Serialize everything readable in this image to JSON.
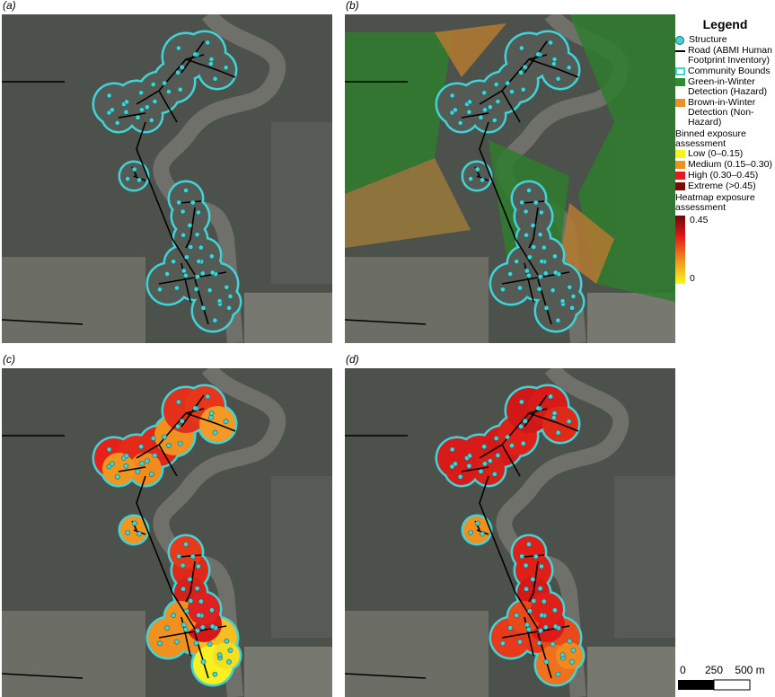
{
  "panel_labels": [
    "(a)",
    "(b)",
    "(c)",
    "(d)"
  ],
  "legend": {
    "title": "Legend",
    "items": [
      {
        "label": "Structure",
        "color": "#3fd4d8"
      },
      {
        "label": "Road (ABMI Human Footprint Inventory)",
        "color": "#000000"
      },
      {
        "label": "Community Bounds",
        "color": "#3fd4d8"
      },
      {
        "label": "Green-in-Winter Detection (Hazard)",
        "color": "#2e8b2e"
      },
      {
        "label": "Brown-in-Winter Detection (Non-Hazard)",
        "color": "#e8902a"
      }
    ],
    "binned_title": "Binned exposure assessment",
    "bins": [
      {
        "label": "Low (0–0.15)",
        "color": "#f5f51e"
      },
      {
        "label": "Medium (0.15–0.30)",
        "color": "#f0901e"
      },
      {
        "label": "High (0.30–0.45)",
        "color": "#e8181e"
      },
      {
        "label": "Extreme (>0.45)",
        "color": "#7a0c0c"
      }
    ],
    "heatmap_title": "Heatmap exposure assessment",
    "heatmap_ticks": [
      0.45,
      0
    ]
  },
  "scale_bar": [
    "0",
    "250",
    "500 m"
  ]
}
